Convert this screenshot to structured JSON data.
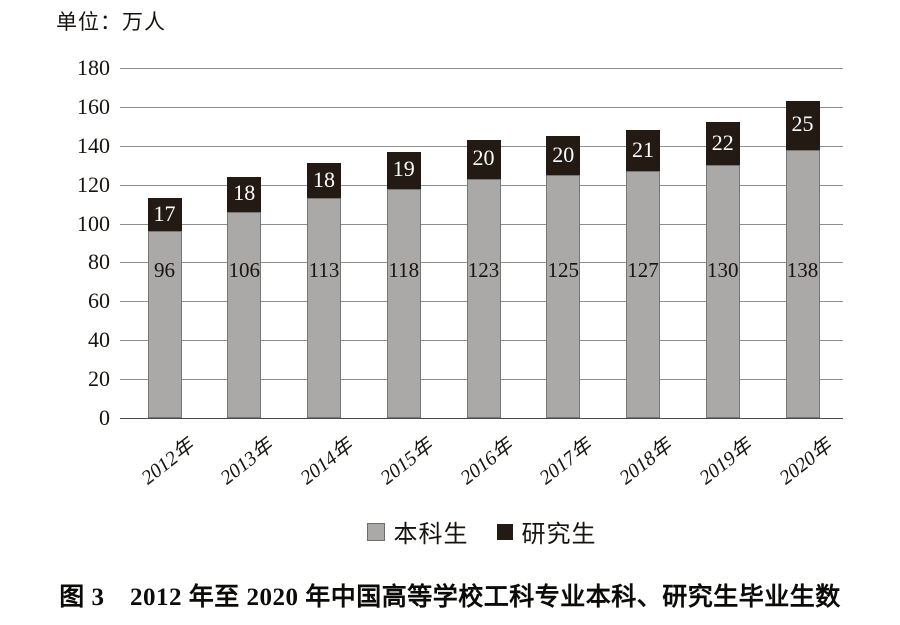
{
  "unit_label": "单位：万人",
  "caption": "图 3　2012 年至 2020 年中国高等学校工科专业本科、研究生毕业生数",
  "colors": {
    "undergrad_fill": "#aba9a8",
    "undergrad_border": "#787674",
    "grad_fill": "#241a14",
    "gridline": "#8f8f8f",
    "axis": "#4a4a4a",
    "text": "#171310",
    "grad_value_text": "#ffffff"
  },
  "legend": {
    "items": [
      {
        "label": "本科生",
        "color": "#aba9a8"
      },
      {
        "label": "研究生",
        "color": "#241a14"
      }
    ]
  },
  "chart_data": {
    "type": "bar",
    "stacked": true,
    "title": "",
    "ylabel": "单位：万人",
    "xlabel": "",
    "categories": [
      "2012年",
      "2013年",
      "2014年",
      "2015年",
      "2016年",
      "2017年",
      "2018年",
      "2019年",
      "2020年"
    ],
    "series": [
      {
        "name": "本科生",
        "values": [
          96,
          106,
          113,
          118,
          123,
          125,
          127,
          130,
          138
        ]
      },
      {
        "name": "研究生",
        "values": [
          17,
          18,
          18,
          19,
          20,
          20,
          21,
          22,
          25
        ]
      }
    ],
    "ylim": [
      0,
      180
    ],
    "yticks": [
      0,
      20,
      40,
      60,
      80,
      100,
      120,
      140,
      160,
      180
    ],
    "grid": true,
    "legend_position": "bottom"
  }
}
